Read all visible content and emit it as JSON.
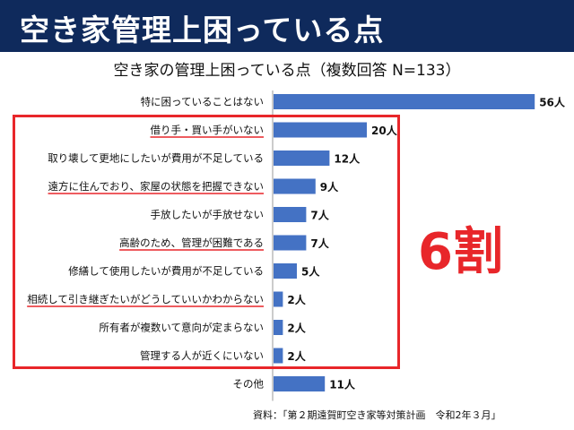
{
  "header": {
    "title": "空き家管理上困っている点"
  },
  "annotation": {
    "text": "6割"
  },
  "source": "資料：「第２期遠賀町空き家等対策計画　令和2年３月」",
  "colors": {
    "bar": "#4472c4",
    "highlight": "#e8262a",
    "header_bg": "#0f2a5c"
  },
  "chart_data": {
    "type": "bar",
    "orientation": "horizontal",
    "title": "空き家の管理上困っている点（複数回答 N=133）",
    "value_suffix": "人",
    "categories": [
      "特に困っていることはない",
      "借り手・買い手がいない",
      "取り壊して更地にしたいが費用が不足している",
      "遠方に住んでおり、家屋の状態を把握できない",
      "手放したいが手放せない",
      "高齢のため、管理が困難である",
      "修繕して使用したいが費用が不足している",
      "相続して引き継ぎたいがどうしていいかわからない",
      "所有者が複数いて意向が定まらない",
      "管理する人が近くにいない",
      "その他"
    ],
    "values": [
      56,
      20,
      12,
      9,
      7,
      7,
      5,
      2,
      2,
      2,
      11
    ],
    "underlined": [
      false,
      true,
      false,
      true,
      false,
      true,
      false,
      true,
      false,
      false,
      false
    ],
    "highlighted_range": [
      1,
      9
    ],
    "grid": false,
    "legend": "none"
  }
}
